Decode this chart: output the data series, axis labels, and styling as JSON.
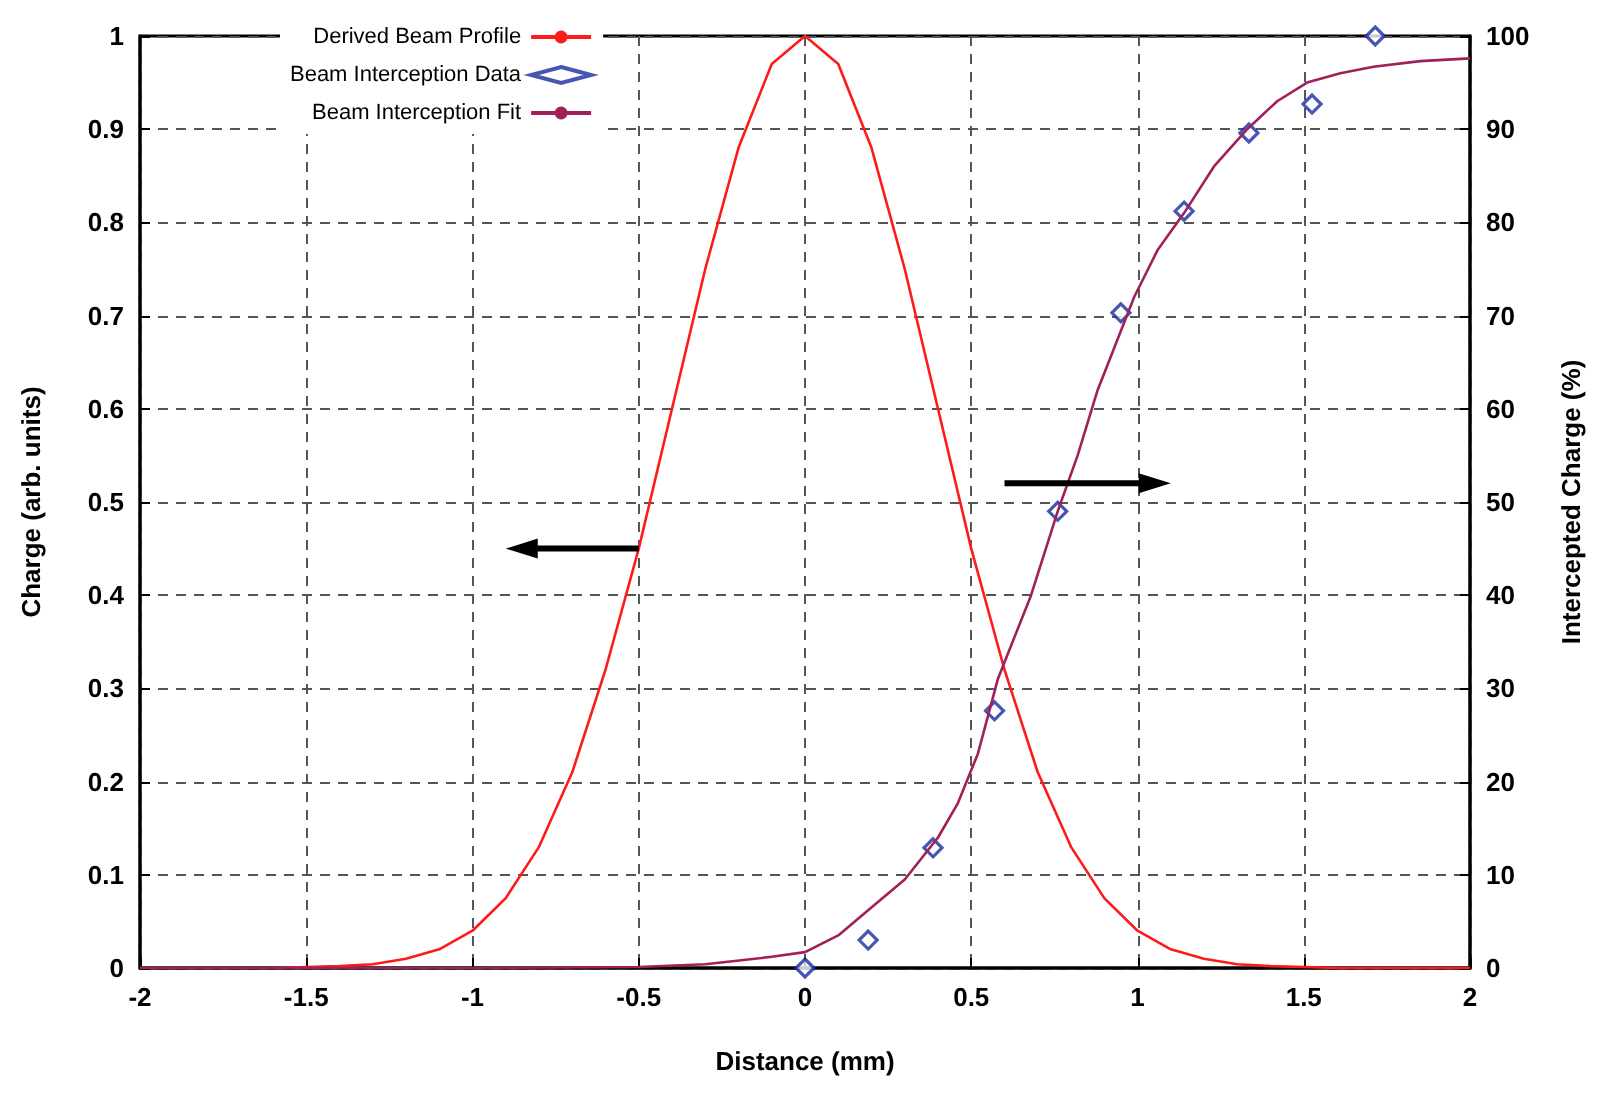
{
  "chart_data": {
    "type": "line",
    "xlabel": "Distance (mm)",
    "ylabel": "Charge (arb. units)",
    "y2label": "Intercepted Charge (%)",
    "xlim": [
      -2,
      2
    ],
    "xticks": [
      -2,
      -1.5,
      -1,
      -0.5,
      0,
      0.5,
      1,
      1.5,
      2
    ],
    "ylim": [
      0,
      1
    ],
    "yticks": [
      0,
      0.1,
      0.2,
      0.3,
      0.4,
      0.5,
      0.6,
      0.7,
      0.8,
      0.9,
      1
    ],
    "y2lim": [
      0,
      100
    ],
    "y2ticks": [
      0,
      10,
      20,
      30,
      40,
      50,
      60,
      70,
      80,
      90,
      100
    ],
    "grid": true,
    "legend": "top left",
    "series": [
      {
        "name": "Derived Beam Profile",
        "type": "line",
        "color": "#ff1a1a",
        "marker": "none",
        "x": [
          -2,
          -1.6,
          -1.5,
          -1.4,
          -1.3,
          -1.2,
          -1.1,
          -1,
          -0.9,
          -0.8,
          -0.7,
          -0.6,
          -0.5,
          -0.4,
          -0.3,
          -0.2,
          -0.1,
          0,
          0.1,
          0.2,
          0.3,
          0.4,
          0.5,
          0.6,
          0.7,
          0.8,
          0.9,
          1,
          1.1,
          1.2,
          1.3,
          1.4,
          1.5,
          1.6,
          2
        ],
        "values": [
          0,
          0,
          0.001,
          0.002,
          0.004,
          0.01,
          0.02,
          0.04,
          0.075,
          0.13,
          0.21,
          0.32,
          0.45,
          0.6,
          0.75,
          0.88,
          0.97,
          1,
          0.97,
          0.88,
          0.75,
          0.6,
          0.45,
          0.32,
          0.21,
          0.13,
          0.075,
          0.04,
          0.02,
          0.01,
          0.004,
          0.002,
          0.001,
          0,
          0
        ]
      },
      {
        "name": "Beam Interception Data",
        "type": "scatter",
        "axis": "y2",
        "color": "#1a2aa0",
        "marker": "diamond",
        "x": [
          0,
          0.19,
          0.385,
          0.57,
          0.76,
          0.95,
          1.14,
          1.335,
          1.525,
          1.715
        ],
        "values": [
          0,
          3,
          12.9,
          27.6,
          49,
          70.3,
          81.2,
          89.6,
          92.7,
          100
        ]
      },
      {
        "name": "Beam Interception Fit",
        "type": "line",
        "axis": "y2",
        "color": "#a0205a",
        "marker": "none",
        "x": [
          -2,
          -1,
          -0.5,
          -0.3,
          -0.1,
          0,
          0.1,
          0.18,
          0.3,
          0.4,
          0.46,
          0.52,
          0.58,
          0.68,
          0.76,
          0.82,
          0.88,
          0.99,
          1.06,
          1.14,
          1.23,
          1.33,
          1.42,
          1.51,
          1.61,
          1.71,
          1.85,
          2
        ],
        "values": [
          0,
          0,
          0.1,
          0.4,
          1.2,
          1.7,
          3.5,
          5.9,
          9.5,
          14,
          17.7,
          23,
          31,
          40,
          49,
          55,
          62,
          72,
          77,
          81,
          86,
          90,
          93,
          95,
          96,
          96.7,
          97.3,
          97.6
        ]
      }
    ]
  }
}
